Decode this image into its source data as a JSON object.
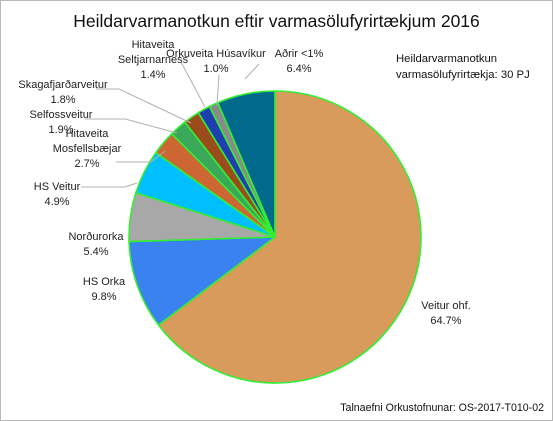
{
  "chart_data": {
    "type": "pie",
    "title": "Heildarvarmanotkun eftir varmasölufyrirtækjum 2016",
    "note_line1": "Heildarvarmanotkun",
    "note_line2": "varmasölufyrirtækja: 30 PJ",
    "source": "Talnaefni Orkustofnunar: OS-2017-T010-02",
    "border_color": "#33ee33",
    "slices": [
      {
        "name": "Veitur ohf.",
        "label_lines": [
          "Veitur ohf.",
          "64.7%"
        ],
        "value": 64.7,
        "color": "#d89b5c"
      },
      {
        "name": "HS Orka",
        "label_lines": [
          "HS Orka",
          "9.8%"
        ],
        "value": 9.8,
        "color": "#3a82f0"
      },
      {
        "name": "Norðurorka",
        "label_lines": [
          "Norðurorka",
          "5.4%"
        ],
        "value": 5.4,
        "color": "#a8a8a8"
      },
      {
        "name": "HS Veitur",
        "label_lines": [
          "HS Veitur",
          "4.9%"
        ],
        "value": 4.9,
        "color": "#00bfff"
      },
      {
        "name": "Hitaveita Mosfellsbæjar",
        "label_lines": [
          "Hitaveita",
          "Mosfellsbæjar",
          "2.7%"
        ],
        "value": 2.7,
        "color": "#cc6633"
      },
      {
        "name": "Selfossveitur",
        "label_lines": [
          "Selfossveitur",
          "1.9%"
        ],
        "value": 1.9,
        "color": "#3aa858"
      },
      {
        "name": "Skagafjarðarveitur",
        "label_lines": [
          "Skagafjarðarveitur",
          "1.8%"
        ],
        "value": 1.8,
        "color": "#9a4d1a"
      },
      {
        "name": "Hitaveita Seltjarnarness",
        "label_lines": [
          "Hitaveita",
          "Seltjarnarness",
          "1.4%"
        ],
        "value": 1.4,
        "color": "#1f3fae"
      },
      {
        "name": "Orkuveita Húsavíkur",
        "label_lines": [
          "Orkuveita Húsavíkur",
          "1.0%"
        ],
        "value": 1.0,
        "color": "#8a8a8a"
      },
      {
        "name": "Aðrir <1%",
        "label_lines": [
          "Aðrir <1%",
          "6.4%"
        ],
        "value": 6.4,
        "color": "#00698c"
      }
    ]
  }
}
